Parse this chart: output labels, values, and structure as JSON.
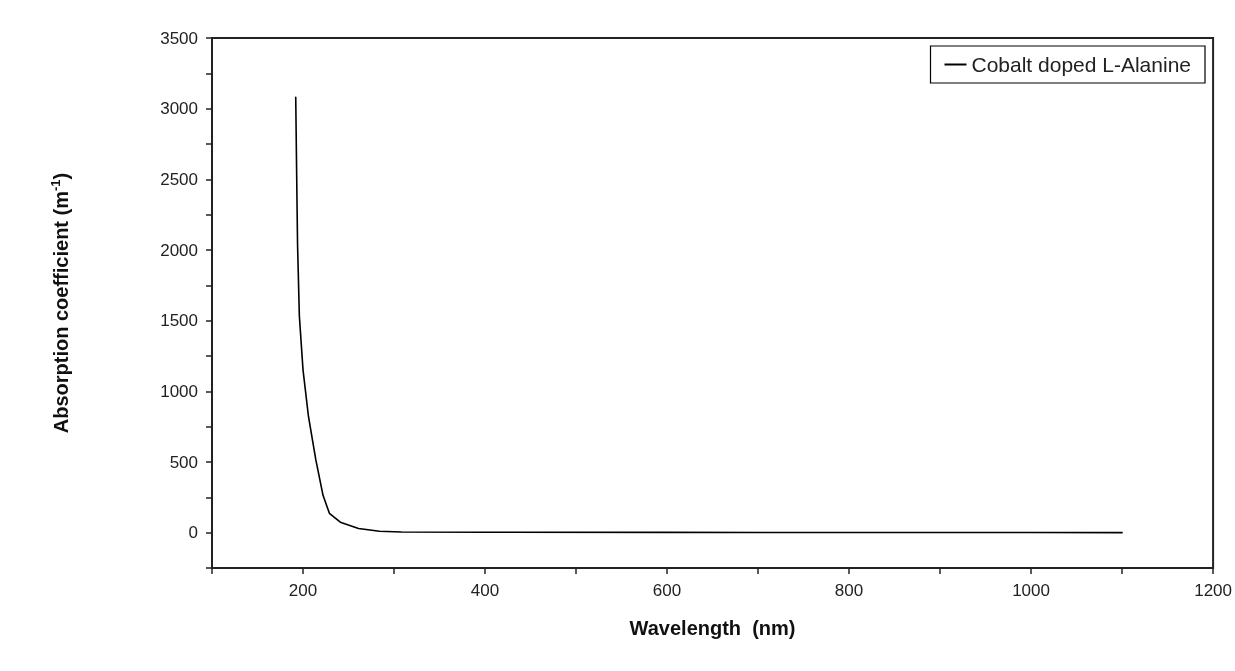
{
  "chart_data": {
    "type": "line",
    "xlabel": "Wavelength  (nm)",
    "ylabel": "Absorption coefficient (m$^{-1}$)",
    "series": [
      {
        "name": "Cobalt doped L-Alanine",
        "color": "#000000",
        "x": [
          192,
          193,
          194,
          196,
          200,
          206,
          214,
          222,
          229,
          241,
          261,
          284,
          308,
          400,
          600,
          800,
          1000,
          1100
        ],
        "values": [
          3081,
          2548,
          2040,
          1533,
          1152,
          822,
          518,
          264,
          137,
          74,
          30,
          10,
          5,
          3,
          2,
          1,
          1,
          0
        ]
      }
    ],
    "xlim": [
      100,
      1200
    ],
    "xticks": [
      {
        "value": 100,
        "label": null
      },
      200,
      {
        "value": 300,
        "label": null
      },
      400,
      {
        "value": 500,
        "label": null
      },
      600,
      {
        "value": 700,
        "label": null
      },
      800,
      {
        "value": 900,
        "label": null
      },
      1000,
      {
        "value": 1100,
        "label": null
      },
      1200
    ],
    "ylim": [
      -250,
      3500
    ],
    "yticks": [
      {
        "value": -250,
        "label": null
      },
      0,
      {
        "value": 250,
        "label": null
      },
      500,
      {
        "value": 750,
        "label": null
      },
      1000,
      {
        "value": 1250,
        "label": null
      },
      1500,
      {
        "value": 1750,
        "label": null
      },
      2000,
      {
        "value": 2250,
        "label": null
      },
      2500,
      {
        "value": 2750,
        "label": null
      },
      3000,
      {
        "value": 3250,
        "label": null
      },
      3500
    ],
    "grid": false,
    "legend": "top right",
    "marker": "none",
    "line_style": "solid"
  }
}
